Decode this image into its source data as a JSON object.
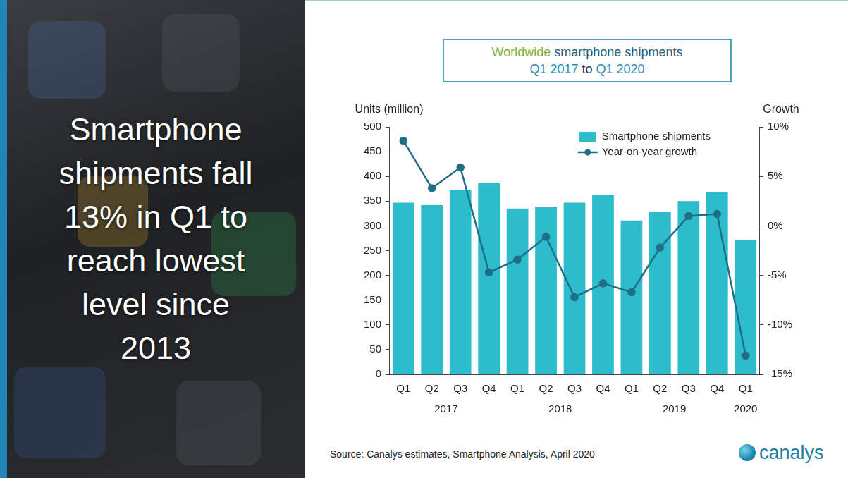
{
  "headline": [
    "Smartphone",
    "shipments fall",
    "13% in Q1 to",
    "reach lowest",
    "level since",
    "2013"
  ],
  "chart_data": {
    "type": "bar",
    "title": [
      [
        {
          "text": "Worldwide",
          "color": "#7cb342"
        },
        {
          "text": "smartphone shipments",
          "color": "#1f5f7a"
        }
      ],
      [
        {
          "text": "Q1 2017",
          "color": "#2b8ab8"
        },
        {
          "text": "to",
          "color": "#1f3d55"
        },
        {
          "text": "Q1 2020",
          "color": "#2b8ab8"
        }
      ]
    ],
    "y_label": "Units (million)",
    "y2_label": "Growth",
    "categories": [
      "Q1",
      "Q2",
      "Q3",
      "Q4",
      "Q1",
      "Q2",
      "Q3",
      "Q4",
      "Q1",
      "Q2",
      "Q3",
      "Q4",
      "Q1"
    ],
    "category_groups": [
      {
        "label": "2017",
        "count": 4
      },
      {
        "label": "2018",
        "count": 4
      },
      {
        "label": "2019",
        "count": 4
      },
      {
        "label": "2020",
        "count": 1
      }
    ],
    "series": [
      {
        "name": "Smartphone shipments",
        "type": "bar",
        "color": "#2cbccb",
        "values": [
          347,
          342,
          373,
          386,
          335,
          339,
          347,
          362,
          311,
          329,
          350,
          368,
          272
        ]
      },
      {
        "name": "Year-on-year growth",
        "type": "line",
        "color": "#1f6e86",
        "marker": "circle",
        "line_style": "solid",
        "axis": "y2",
        "values": [
          8.6,
          3.8,
          5.9,
          -4.7,
          -3.4,
          -1.1,
          -7.2,
          -5.8,
          -6.7,
          -2.2,
          1.0,
          1.2,
          -13.1
        ]
      }
    ],
    "ylim": [
      0,
      500
    ],
    "yticks": [
      0,
      50,
      100,
      150,
      200,
      250,
      300,
      350,
      400,
      450,
      500
    ],
    "y2lim": [
      -15,
      10
    ],
    "y2ticks": [
      {
        "value": 10,
        "label": "10%"
      },
      {
        "value": 5,
        "label": "5%"
      },
      {
        "value": 0,
        "label": "0%"
      },
      {
        "value": -5,
        "label": "-5%"
      },
      {
        "value": -10,
        "label": "-10%"
      },
      {
        "value": -15,
        "label": "-15%"
      }
    ],
    "grid": false,
    "legend": "top right"
  },
  "source": "Source: Canalys estimates, Smartphone Analysis, April 2020",
  "logo": "canalys"
}
